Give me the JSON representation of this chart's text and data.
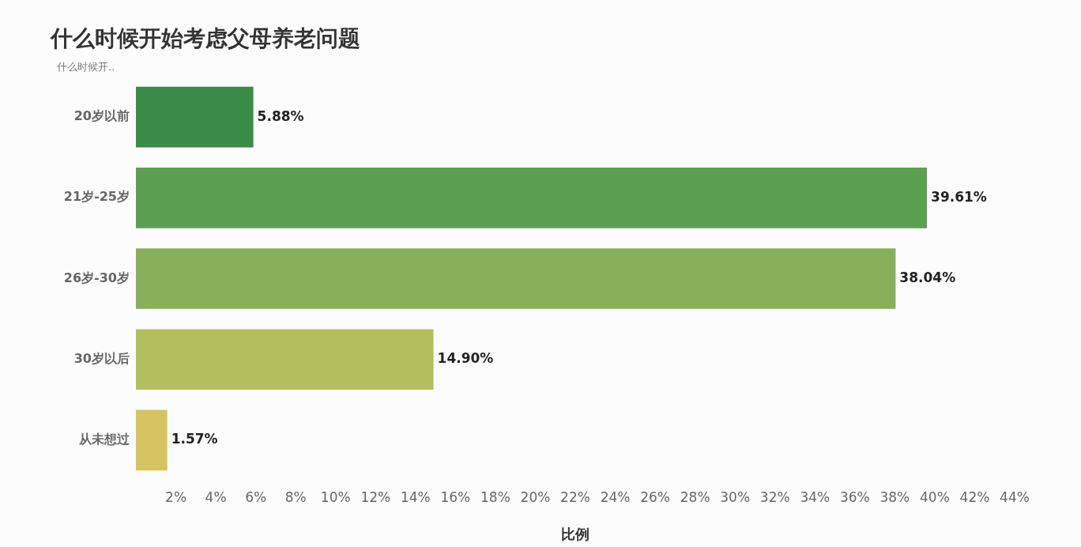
{
  "chart_data": {
    "type": "bar",
    "orientation": "horizontal",
    "title": "什么时候开始考虑父母养老问题",
    "ylabel": "什么时候开..",
    "xlabel": "比例",
    "categories": [
      "20岁以前",
      "21岁-25岁",
      "26岁-30岁",
      "30岁以后",
      "从未想过"
    ],
    "values": [
      5.88,
      39.61,
      38.04,
      14.9,
      1.57
    ],
    "value_labels": [
      "5.88%",
      "39.61%",
      "38.04%",
      "14.90%",
      "1.57%"
    ],
    "colors": [
      "#3b8b48",
      "#5c9f53",
      "#88b05a",
      "#b1c05c",
      "#d6c460"
    ],
    "xlim": [
      0,
      44
    ],
    "xticks": [
      {
        "value": 2,
        "label": "2%"
      },
      {
        "value": 4,
        "label": "4%"
      },
      {
        "value": 6,
        "label": "6%"
      },
      {
        "value": 8,
        "label": "8%"
      },
      {
        "value": 10,
        "label": "10%"
      },
      {
        "value": 12,
        "label": "12%"
      },
      {
        "value": 14,
        "label": "14%"
      },
      {
        "value": 16,
        "label": "16%"
      },
      {
        "value": 18,
        "label": "18%"
      },
      {
        "value": 20,
        "label": "20%"
      },
      {
        "value": 22,
        "label": "22%"
      },
      {
        "value": 24,
        "label": "24%"
      },
      {
        "value": 26,
        "label": "26%"
      },
      {
        "value": 28,
        "label": "28%"
      },
      {
        "value": 30,
        "label": "30%"
      },
      {
        "value": 32,
        "label": "32%"
      },
      {
        "value": 34,
        "label": "34%"
      },
      {
        "value": 36,
        "label": "36%"
      },
      {
        "value": 38,
        "label": "38%"
      },
      {
        "value": 40,
        "label": "40%"
      },
      {
        "value": 42,
        "label": "42%"
      },
      {
        "value": 44,
        "label": "44%"
      }
    ],
    "grid": false,
    "legend": false
  }
}
